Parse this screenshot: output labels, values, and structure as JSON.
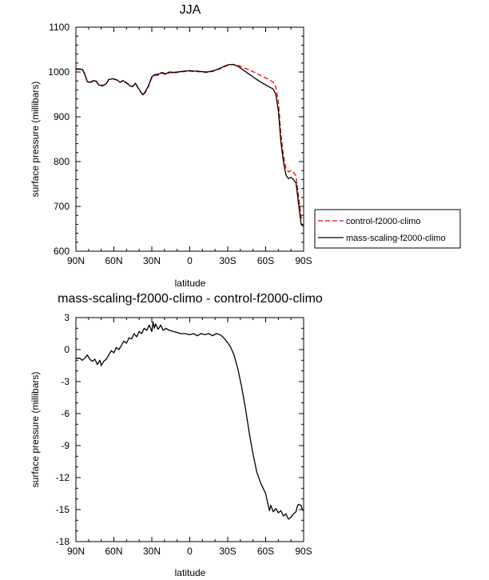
{
  "chart_data": [
    {
      "type": "line",
      "title": "JJA",
      "xlabel": "latitude",
      "ylabel": "surface pressure (millibars)",
      "xticks": [
        "90N",
        "60N",
        "30N",
        "0",
        "30S",
        "60S",
        "90S"
      ],
      "yticks": [
        "600",
        "700",
        "800",
        "900",
        "1000",
        "1100"
      ],
      "xlim": [
        90,
        -90
      ],
      "ylim": [
        600,
        1100
      ],
      "legend_position": "right",
      "series": [
        {
          "name": "control-f2000-climo",
          "color": "#ff0000",
          "dash": "dashed",
          "points": [
            [
              90,
              1007
            ],
            [
              85,
              1007
            ],
            [
              83,
              997
            ],
            [
              81,
              979
            ],
            [
              78,
              978
            ],
            [
              76,
              982
            ],
            [
              74,
              980
            ],
            [
              72,
              972
            ],
            [
              69,
              970
            ],
            [
              66,
              974
            ],
            [
              64,
              984
            ],
            [
              61,
              985
            ],
            [
              58,
              982
            ],
            [
              55,
              977
            ],
            [
              53,
              980
            ],
            [
              50,
              975
            ],
            [
              47,
              968
            ],
            [
              45,
              967
            ],
            [
              43,
              974
            ],
            [
              40,
              960
            ],
            [
              38,
              952
            ],
            [
              37,
              948
            ],
            [
              35,
              955
            ],
            [
              33,
              965
            ],
            [
              30,
              987
            ],
            [
              28,
              992
            ],
            [
              25,
              993
            ],
            [
              22,
              997
            ],
            [
              19,
              994
            ],
            [
              16,
              999
            ],
            [
              13,
              998
            ],
            [
              10,
              999
            ],
            [
              7,
              1000
            ],
            [
              4,
              1001
            ],
            [
              0,
              1002
            ],
            [
              -3,
              1001
            ],
            [
              -6,
              1001
            ],
            [
              -9,
              1000
            ],
            [
              -13,
              999
            ],
            [
              -16,
              1000
            ],
            [
              -19,
              1002
            ],
            [
              -22,
              1005
            ],
            [
              -26,
              1010
            ],
            [
              -30,
              1015
            ],
            [
              -34,
              1017
            ],
            [
              -38,
              1015
            ],
            [
              -42,
              1010
            ],
            [
              -47,
              1005
            ],
            [
              -52,
              998
            ],
            [
              -57,
              991
            ],
            [
              -62,
              984
            ],
            [
              -66,
              977
            ],
            [
              -68,
              967
            ],
            [
              -70,
              935
            ],
            [
              -71,
              900
            ],
            [
              -72,
              862
            ],
            [
              -74,
              815
            ],
            [
              -76,
              786
            ],
            [
              -78,
              777
            ],
            [
              -80,
              780
            ],
            [
              -82,
              776
            ],
            [
              -84,
              768
            ],
            [
              -86,
              723
            ],
            [
              -88,
              676
            ],
            [
              -90,
              670
            ]
          ]
        },
        {
          "name": "mass-scaling-f2000-climo",
          "color": "#000000",
          "dash": "solid",
          "points": [
            [
              90,
              1006
            ],
            [
              85,
              1006
            ],
            [
              83,
              995
            ],
            [
              81,
              978
            ],
            [
              78,
              977
            ],
            [
              76,
              981
            ],
            [
              74,
              979
            ],
            [
              72,
              971
            ],
            [
              69,
              969
            ],
            [
              66,
              974
            ],
            [
              64,
              983
            ],
            [
              61,
              985
            ],
            [
              58,
              983
            ],
            [
              55,
              977
            ],
            [
              53,
              981
            ],
            [
              50,
              976
            ],
            [
              47,
              969
            ],
            [
              45,
              968
            ],
            [
              43,
              975
            ],
            [
              40,
              961
            ],
            [
              38,
              953
            ],
            [
              37,
              949
            ],
            [
              35,
              957
            ],
            [
              33,
              967
            ],
            [
              30,
              989
            ],
            [
              28,
              994
            ],
            [
              25,
              995
            ],
            [
              22,
              999
            ],
            [
              19,
              996
            ],
            [
              16,
              1000
            ],
            [
              13,
              999
            ],
            [
              10,
              1000
            ],
            [
              7,
              1001
            ],
            [
              4,
              1002
            ],
            [
              0,
              1003
            ],
            [
              -3,
              1002
            ],
            [
              -6,
              1002
            ],
            [
              -9,
              1001
            ],
            [
              -13,
              1000
            ],
            [
              -16,
              1001
            ],
            [
              -19,
              1003
            ],
            [
              -22,
              1006
            ],
            [
              -26,
              1011
            ],
            [
              -30,
              1016
            ],
            [
              -34,
              1017
            ],
            [
              -38,
              1013
            ],
            [
              -42,
              1005
            ],
            [
              -47,
              995
            ],
            [
              -52,
              985
            ],
            [
              -57,
              976
            ],
            [
              -62,
              968
            ],
            [
              -66,
              962
            ],
            [
              -68,
              950
            ],
            [
              -70,
              915
            ],
            [
              -71,
              880
            ],
            [
              -72,
              845
            ],
            [
              -74,
              800
            ],
            [
              -76,
              770
            ],
            [
              -78,
              762
            ],
            [
              -80,
              765
            ],
            [
              -82,
              760
            ],
            [
              -84,
              752
            ],
            [
              -86,
              706
            ],
            [
              -88,
              660
            ],
            [
              -90,
              655
            ]
          ]
        }
      ]
    },
    {
      "type": "line",
      "title": "mass-scaling-f2000-climo - control-f2000-climo",
      "xlabel": "latitude",
      "ylabel": "surface pressure (millibars)",
      "xticks": [
        "90N",
        "60N",
        "30N",
        "0",
        "30S",
        "60S",
        "90S"
      ],
      "yticks": [
        "-18",
        "-15",
        "-12",
        "-9",
        "-6",
        "-3",
        "0",
        "3"
      ],
      "xlim": [
        90,
        -90
      ],
      "ylim": [
        -18,
        3
      ],
      "series": [
        {
          "name": "",
          "color": "#000000",
          "dash": "solid",
          "points": [
            [
              90,
              -0.8
            ],
            [
              87,
              -0.8
            ],
            [
              85,
              -1.0
            ],
            [
              83,
              -0.8
            ],
            [
              81,
              -0.5
            ],
            [
              79,
              -0.9
            ],
            [
              77,
              -1.1
            ],
            [
              75,
              -0.9
            ],
            [
              73,
              -1.4
            ],
            [
              71,
              -1.0
            ],
            [
              70,
              -1.5
            ],
            [
              68,
              -1.1
            ],
            [
              66,
              -0.9
            ],
            [
              64,
              -0.5
            ],
            [
              62,
              -0.1
            ],
            [
              60,
              -0.3
            ],
            [
              58,
              0.2
            ],
            [
              56,
              0.0
            ],
            [
              54,
              0.4
            ],
            [
              52,
              0.8
            ],
            [
              50,
              0.6
            ],
            [
              48,
              1.1
            ],
            [
              46,
              1.0
            ],
            [
              44,
              1.5
            ],
            [
              42,
              1.2
            ],
            [
              40,
              1.7
            ],
            [
              38,
              1.5
            ],
            [
              36,
              2.0
            ],
            [
              34,
              1.8
            ],
            [
              32,
              2.3
            ],
            [
              30,
              1.7
            ],
            [
              29,
              2.6
            ],
            [
              28,
              2.0
            ],
            [
              27,
              2.4
            ],
            [
              25,
              1.9
            ],
            [
              23,
              2.3
            ],
            [
              21,
              1.8
            ],
            [
              19,
              2.0
            ],
            [
              16,
              1.8
            ],
            [
              13,
              1.7
            ],
            [
              10,
              1.6
            ],
            [
              7,
              1.5
            ],
            [
              4,
              1.5
            ],
            [
              0,
              1.4
            ],
            [
              -3,
              1.5
            ],
            [
              -6,
              1.3
            ],
            [
              -9,
              1.5
            ],
            [
              -12,
              1.4
            ],
            [
              -15,
              1.5
            ],
            [
              -18,
              1.3
            ],
            [
              -21,
              1.5
            ],
            [
              -24,
              1.4
            ],
            [
              -26,
              1.2
            ],
            [
              -29,
              0.8
            ],
            [
              -32,
              0.3
            ],
            [
              -35,
              -0.5
            ],
            [
              -38,
              -1.8
            ],
            [
              -41,
              -3.5
            ],
            [
              -44,
              -5.5
            ],
            [
              -47,
              -7.8
            ],
            [
              -50,
              -9.8
            ],
            [
              -53,
              -11.5
            ],
            [
              -56,
              -12.5
            ],
            [
              -58,
              -13.0
            ],
            [
              -60,
              -13.5
            ],
            [
              -62,
              -14.6
            ],
            [
              -63,
              -15.1
            ],
            [
              -64,
              -14.6
            ],
            [
              -66,
              -15.2
            ],
            [
              -68,
              -14.9
            ],
            [
              -70,
              -15.3
            ],
            [
              -72,
              -15.1
            ],
            [
              -74,
              -15.6
            ],
            [
              -76,
              -15.4
            ],
            [
              -78,
              -15.9
            ],
            [
              -80,
              -15.7
            ],
            [
              -82,
              -15.4
            ],
            [
              -84,
              -15.2
            ],
            [
              -85,
              -14.7
            ],
            [
              -86,
              -14.5
            ],
            [
              -88,
              -14.6
            ],
            [
              -89,
              -15.0
            ],
            [
              -90,
              -15.1
            ]
          ]
        }
      ]
    }
  ]
}
